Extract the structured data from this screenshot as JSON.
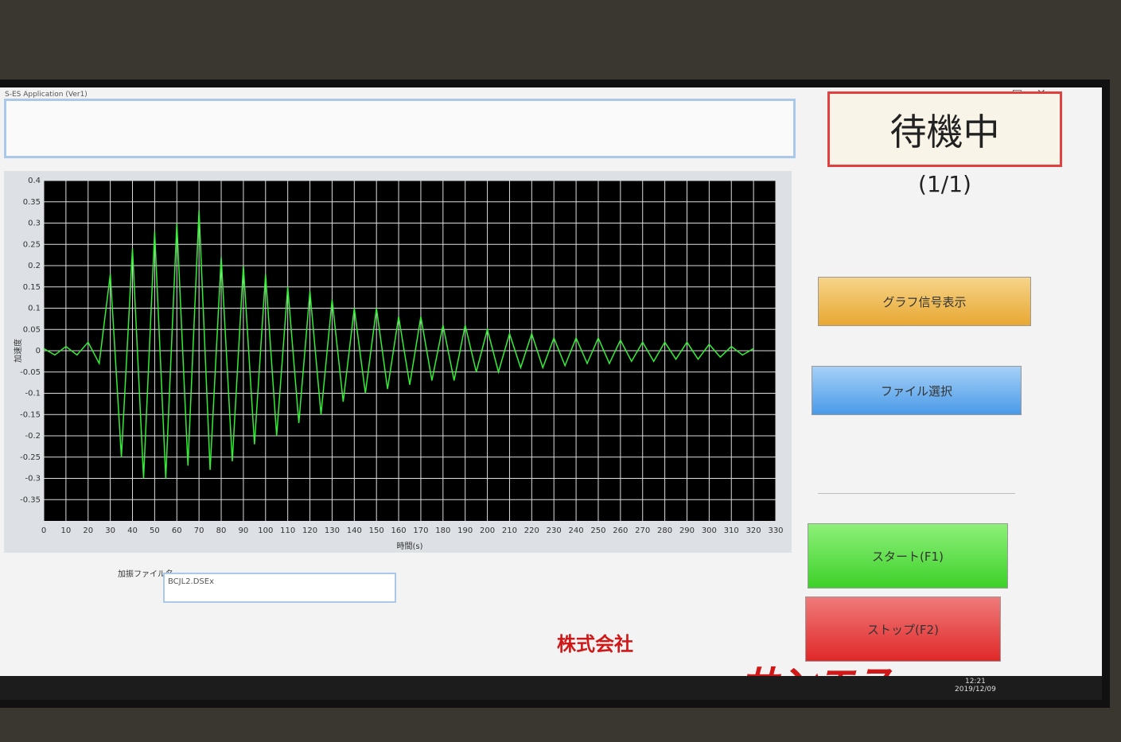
{
  "window": {
    "title": "S-ES Application (Ver1)"
  },
  "status": {
    "text": "待機中",
    "counter": "(1/1)"
  },
  "buttons": [
    "グラフ信号表示",
    "ファイル選択",
    "スタート(F1)",
    "ストップ(F2)"
  ],
  "file": {
    "label": "加振ファイル名",
    "value": "BCJL2.DSEx"
  },
  "logo": {
    "company": "株式会社",
    "brand": "サンエス"
  },
  "taskbar": {
    "time": "12:21",
    "date": "2019/12/09"
  },
  "chart_data": {
    "type": "line",
    "xlabel": "時間(s)",
    "ylabel": "加速度",
    "x": [
      0,
      5,
      10,
      15,
      20,
      25,
      30,
      35,
      40,
      45,
      50,
      55,
      60,
      65,
      70,
      75,
      80,
      85,
      90,
      95,
      100,
      105,
      110,
      115,
      120,
      125,
      130,
      135,
      140,
      145,
      150,
      155,
      160,
      165,
      170,
      175,
      180,
      185,
      190,
      195,
      200,
      205,
      210,
      215,
      220,
      225,
      230,
      235,
      240,
      245,
      250,
      255,
      260,
      265,
      270,
      275,
      280,
      285,
      290,
      295,
      300,
      305,
      310,
      315,
      320
    ],
    "series": [
      {
        "name": "加速度",
        "color": "#33ee33",
        "values": [
          0.005,
          -0.01,
          0.01,
          -0.01,
          0.02,
          -0.03,
          0.18,
          -0.25,
          0.24,
          -0.3,
          0.28,
          -0.3,
          0.3,
          -0.27,
          0.33,
          -0.28,
          0.22,
          -0.26,
          0.2,
          -0.22,
          0.18,
          -0.2,
          0.15,
          -0.17,
          0.14,
          -0.15,
          0.12,
          -0.12,
          0.1,
          -0.1,
          0.1,
          -0.09,
          0.08,
          -0.08,
          0.08,
          -0.07,
          0.06,
          -0.07,
          0.06,
          -0.05,
          0.05,
          -0.05,
          0.04,
          -0.04,
          0.04,
          -0.04,
          0.03,
          -0.035,
          0.03,
          -0.03,
          0.03,
          -0.03,
          0.025,
          -0.025,
          0.02,
          -0.025,
          0.02,
          -0.02,
          0.02,
          -0.02,
          0.015,
          -0.015,
          0.01,
          -0.01,
          0.005
        ]
      }
    ],
    "xlim": [
      0,
      330
    ],
    "xticks": [
      0,
      10,
      20,
      30,
      40,
      50,
      60,
      70,
      80,
      90,
      100,
      110,
      120,
      130,
      140,
      150,
      160,
      170,
      180,
      190,
      200,
      210,
      220,
      230,
      240,
      250,
      260,
      270,
      280,
      290,
      300,
      310,
      320,
      330
    ],
    "ylim": [
      -0.4,
      0.4
    ],
    "yticks": [
      0.4,
      0.35,
      0.3,
      0.25,
      0.2,
      0.15,
      0.1,
      0.05,
      0,
      -0.05,
      -0.1,
      -0.15,
      -0.2,
      -0.25,
      -0.3,
      -0.35
    ],
    "grid": true
  }
}
